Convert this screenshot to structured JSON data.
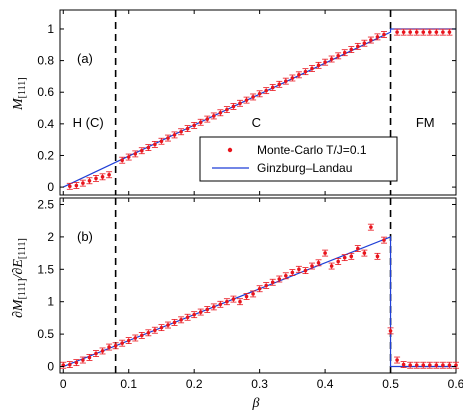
{
  "chart_data": [
    {
      "type": "scatter",
      "panel": "(a)",
      "ylabel": "M_[111]",
      "xlim": [
        -0.005,
        0.6
      ],
      "ylim": [
        -0.05,
        1.12
      ],
      "xticks": [
        0,
        0.1,
        0.2,
        0.3,
        0.4,
        0.5,
        0.6
      ],
      "yticks": [
        0,
        0.2,
        0.4,
        0.6,
        0.8,
        1
      ],
      "xtick_labels": [],
      "ytick_labels": [
        "0",
        "0.2",
        "0.4",
        "0.6",
        "0.8",
        "1"
      ],
      "vlines": [
        0.08,
        0.5
      ],
      "region_labels": [
        {
          "text": "H (C)",
          "x": 0.038,
          "y": 0.38
        },
        {
          "text": "C",
          "x": 0.295,
          "y": 0.38
        },
        {
          "text": "FM",
          "x": 0.553,
          "y": 0.38
        }
      ],
      "legend": {
        "position": "center-right",
        "entries": [
          "Monte-Carlo T/J=0.1",
          "Ginzburg–Landau"
        ]
      },
      "series": [
        {
          "name": "Monte-Carlo T/J=0.1",
          "style": "red-points-errorbars",
          "x": [
            0.01,
            0.02,
            0.03,
            0.04,
            0.05,
            0.06,
            0.07,
            0.09,
            0.1,
            0.11,
            0.12,
            0.13,
            0.14,
            0.15,
            0.16,
            0.17,
            0.18,
            0.19,
            0.2,
            0.21,
            0.22,
            0.23,
            0.24,
            0.25,
            0.26,
            0.27,
            0.28,
            0.29,
            0.3,
            0.31,
            0.32,
            0.33,
            0.34,
            0.35,
            0.36,
            0.37,
            0.38,
            0.39,
            0.4,
            0.41,
            0.42,
            0.43,
            0.44,
            0.45,
            0.46,
            0.47,
            0.48,
            0.49,
            0.51,
            0.52,
            0.53,
            0.54,
            0.55,
            0.56,
            0.57,
            0.58,
            0.59
          ],
          "y": [
            0.005,
            0.01,
            0.025,
            0.04,
            0.055,
            0.065,
            0.078,
            0.17,
            0.19,
            0.21,
            0.23,
            0.25,
            0.27,
            0.29,
            0.31,
            0.33,
            0.35,
            0.37,
            0.39,
            0.41,
            0.43,
            0.45,
            0.47,
            0.49,
            0.51,
            0.53,
            0.55,
            0.57,
            0.59,
            0.61,
            0.63,
            0.65,
            0.67,
            0.69,
            0.71,
            0.73,
            0.75,
            0.77,
            0.79,
            0.81,
            0.83,
            0.85,
            0.87,
            0.89,
            0.91,
            0.93,
            0.95,
            0.965,
            0.98,
            0.98,
            0.98,
            0.98,
            0.98,
            0.98,
            0.98,
            0.98,
            0.98
          ]
        },
        {
          "name": "Ginzburg–Landau",
          "style": "blue-line",
          "x": [
            0,
            0.5,
            0.5,
            0.6
          ],
          "y": [
            0,
            0.98,
            1.0,
            1.0
          ]
        }
      ]
    },
    {
      "type": "scatter",
      "panel": "(b)",
      "xlabel": "β",
      "ylabel": "∂M_[111]/∂E_[111]",
      "xlim": [
        -0.005,
        0.6
      ],
      "ylim": [
        -0.1,
        2.6
      ],
      "xticks": [
        0,
        0.1,
        0.2,
        0.3,
        0.4,
        0.5,
        0.6
      ],
      "yticks": [
        0,
        0.5,
        1,
        1.5,
        2,
        2.5
      ],
      "xtick_labels": [
        "0",
        "0.1",
        "0.2",
        "0.3",
        "0.4",
        "0.5",
        "0.6"
      ],
      "ytick_labels": [
        "0",
        "0.5",
        "1",
        "1.5",
        "2",
        "2.5"
      ],
      "vlines": [
        0.08,
        0.5
      ],
      "series": [
        {
          "name": "Monte-Carlo T/J=0.1",
          "style": "red-points-errorbars",
          "x": [
            0.0,
            0.01,
            0.02,
            0.03,
            0.04,
            0.05,
            0.06,
            0.07,
            0.08,
            0.09,
            0.1,
            0.11,
            0.12,
            0.13,
            0.14,
            0.15,
            0.16,
            0.17,
            0.18,
            0.19,
            0.2,
            0.21,
            0.22,
            0.23,
            0.24,
            0.25,
            0.26,
            0.27,
            0.28,
            0.29,
            0.3,
            0.31,
            0.32,
            0.33,
            0.34,
            0.35,
            0.36,
            0.37,
            0.38,
            0.39,
            0.4,
            0.41,
            0.42,
            0.43,
            0.44,
            0.45,
            0.46,
            0.47,
            0.48,
            0.49,
            0.5,
            0.51,
            0.52,
            0.53,
            0.54,
            0.55,
            0.56,
            0.57,
            0.58,
            0.59,
            0.6
          ],
          "y": [
            0.02,
            0.03,
            0.06,
            0.1,
            0.14,
            0.2,
            0.24,
            0.3,
            0.32,
            0.36,
            0.4,
            0.44,
            0.48,
            0.52,
            0.56,
            0.6,
            0.64,
            0.68,
            0.72,
            0.76,
            0.8,
            0.84,
            0.88,
            0.92,
            0.96,
            1.0,
            1.04,
            1.0,
            1.08,
            1.12,
            1.2,
            1.25,
            1.3,
            1.35,
            1.4,
            1.45,
            1.5,
            1.48,
            1.55,
            1.6,
            1.75,
            1.55,
            1.62,
            1.68,
            1.7,
            1.82,
            1.75,
            2.15,
            1.7,
            1.95,
            0.55,
            0.1,
            0.03,
            0.02,
            0.02,
            0.02,
            0.02,
            0.02,
            0.02,
            0.02,
            0.02
          ]
        },
        {
          "name": "Ginzburg–Landau",
          "style": "blue-line",
          "x": [
            0,
            0.5,
            0.5,
            0.6
          ],
          "y": [
            0,
            2.0,
            0.0,
            0.0
          ]
        }
      ]
    }
  ],
  "labels": {
    "ylabel_a": "M",
    "ylabel_a_sub": "[111]",
    "ylabel_b_num": "∂M",
    "ylabel_b_sub1": "[111]",
    "ylabel_b_den": "/∂E",
    "ylabel_b_sub2": "[111]",
    "xlabel": "β",
    "panel_a": "(a)",
    "panel_b": "(b)",
    "legend_mc": "Monte-Carlo T/J=0.1",
    "legend_gl": "Ginzburg–Landau",
    "region_h": "H (C)",
    "region_c": "C",
    "region_fm": "FM"
  },
  "colors": {
    "points": "#e8141c",
    "line": "#1f3fd6",
    "axes": "#000000",
    "vlines": "#000000"
  }
}
